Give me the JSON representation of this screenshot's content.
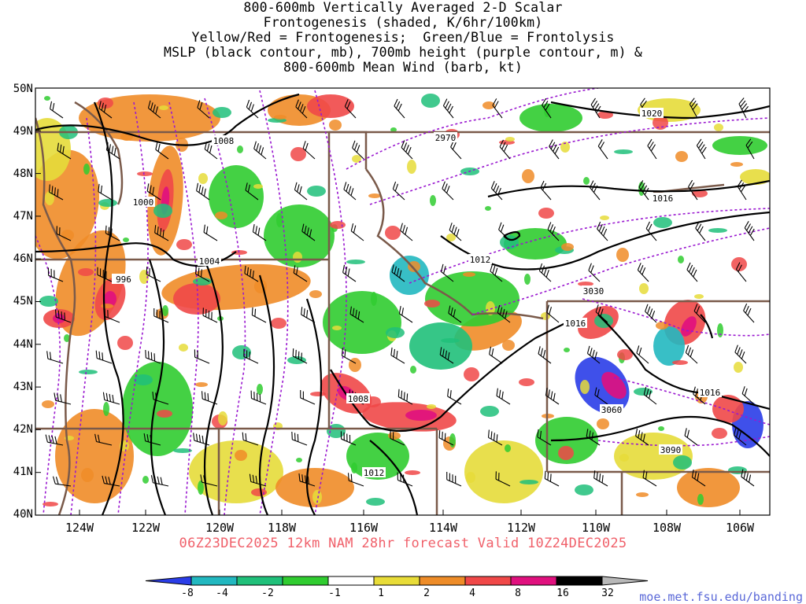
{
  "title_lines": [
    "800-600mb Vertically Averaged 2-D Scalar",
    "Frontogenesis (shaded, K/6hr/100km)",
    "Yellow/Red = Frontogenesis;  Green/Blue = Frontolysis",
    "MSLP (black contour, mb), 700mb height (purple contour, m) &",
    "800-600mb Mean Wind (barb, kt)"
  ],
  "lat_labels": [
    "50N",
    "49N",
    "48N",
    "47N",
    "46N",
    "45N",
    "44N",
    "43N",
    "42N",
    "41N",
    "40N"
  ],
  "lon_labels": [
    "124W",
    "122W",
    "120W",
    "118W",
    "116W",
    "114W",
    "112W",
    "110W",
    "108W",
    "106W"
  ],
  "valid_line": "06Z23DEC2025 12km NAM 28hr forecast Valid 10Z24DEC2025",
  "colorbar": {
    "labels": [
      "-8",
      "-4",
      "-2",
      "-1",
      "1",
      "2",
      "4",
      "8",
      "16",
      "32"
    ],
    "colors": [
      "#2a3de8",
      "#22b8c0",
      "#20c07a",
      "#30cc30",
      "#ffffff",
      "#e8dc38",
      "#ee8c28",
      "#f04848",
      "#e0107e",
      "#000000",
      "#b8b8b8"
    ]
  },
  "map_colors": {
    "frontogenesis_yellow": "#e6dc3a",
    "frontogenesis_orange": "#f08c28",
    "frontogenesis_red": "#f04848",
    "frontogenesis_magenta": "#e0107e",
    "frontolysis_green": "#30cc30",
    "frontolysis_teal": "#20c07a",
    "frontolysis_cyan": "#22b8c0",
    "frontolysis_blue": "#2a3de8",
    "mslp_contour": "#000000",
    "height_contour": "#9a18d0",
    "borders": "#7a5a4a"
  },
  "mslp_contour_labels": [
    "1020",
    "1016",
    "1012",
    "1008",
    "1004",
    "1000",
    "996",
    "1016",
    "1012",
    "1008",
    "1016"
  ],
  "height_contour_labels": [
    "2970",
    "3030",
    "3060",
    "3090"
  ],
  "credit": "moe.met.fsu.edu/banding"
}
